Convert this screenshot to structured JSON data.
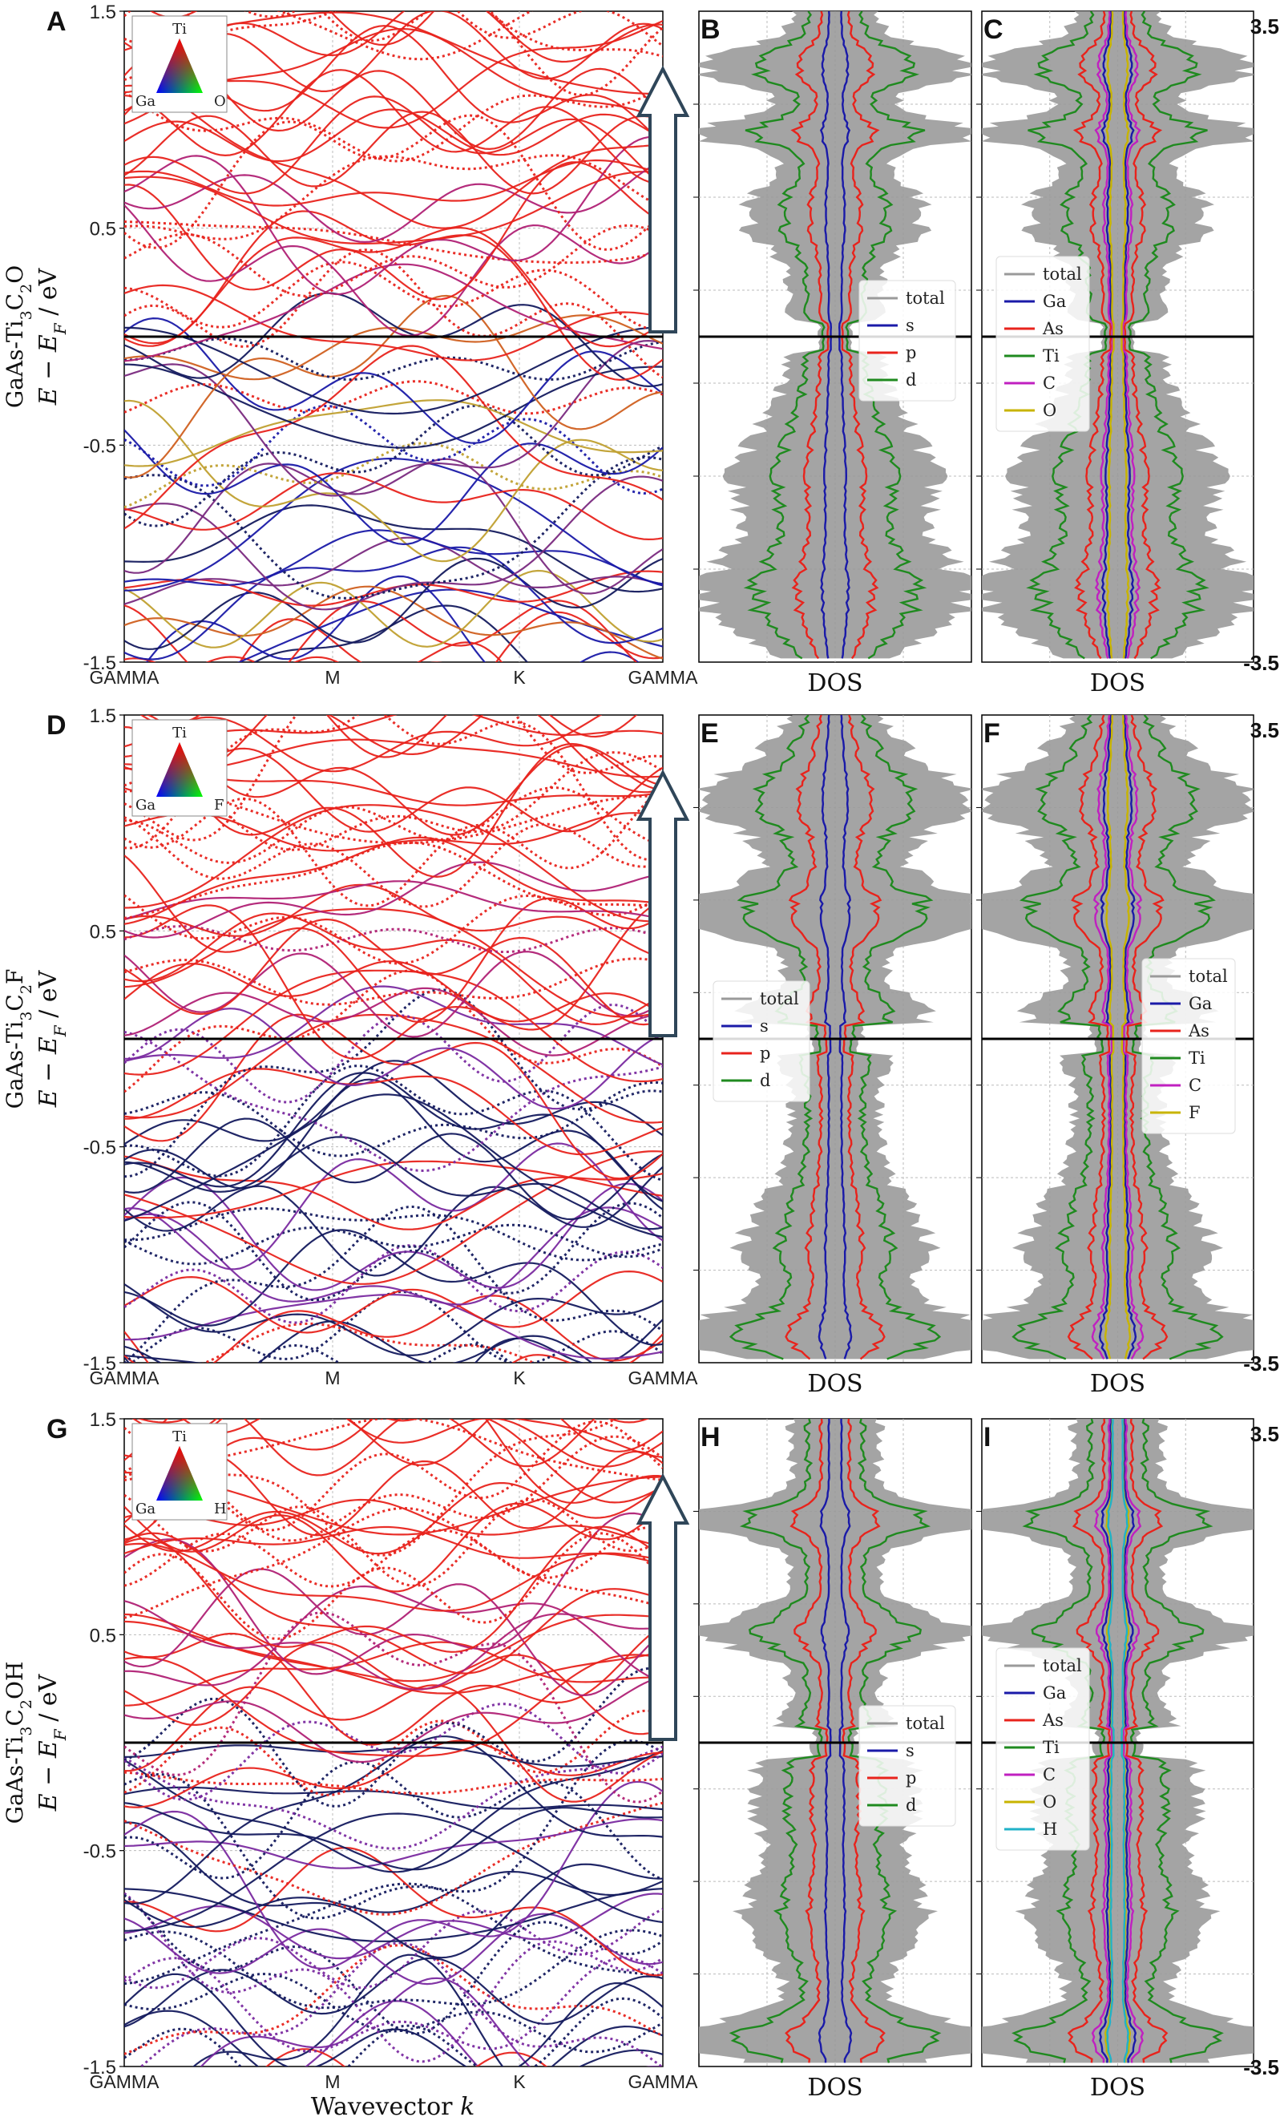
{
  "colors": {
    "red": "#e8231c",
    "blue": "#1a1aa8",
    "navy": "#141a5e",
    "green": "#1f8a1f",
    "magenta": "#c020c0",
    "yellow": "#c8b400",
    "cyan": "#20b2c8",
    "gray": "#9a9a9a",
    "arrow": "#2f4659"
  },
  "chart_data": [
    {
      "panel": "A",
      "type": "line",
      "ylabel_material": "GaAs-Ti3C2O",
      "ylabel": "E − E_F / eV",
      "ylim": [
        -1.5,
        1.5
      ],
      "yticks": [
        "1.5",
        "0.5",
        "-0.5",
        "-1.5"
      ],
      "xticks": [
        "GAMMA",
        "M",
        "K",
        "GAMMA"
      ],
      "xlabel": "",
      "legend_triangle": {
        "top": "Ti",
        "left": "Ga",
        "right": "O"
      }
    },
    {
      "panel": "B",
      "type": "area",
      "xlabel": "DOS",
      "ylim": [
        -3.5,
        3.5
      ],
      "legend": [
        "total",
        "s",
        "p",
        "d"
      ]
    },
    {
      "panel": "C",
      "type": "area",
      "xlabel": "DOS",
      "ylim": [
        -3.5,
        3.5
      ],
      "ytick_labels": {
        "top": "3.5",
        "bottom": "-3.5"
      },
      "legend": [
        "total",
        "Ga",
        "As",
        "Ti",
        "C",
        "O"
      ]
    },
    {
      "panel": "D",
      "type": "line",
      "ylabel_material": "GaAs-Ti3C2F",
      "ylabel": "E − E_F / eV",
      "ylim": [
        -1.5,
        1.5
      ],
      "yticks": [
        "1.5",
        "0.5",
        "-0.5",
        "-1.5"
      ],
      "xticks": [
        "GAMMA",
        "M",
        "K",
        "GAMMA"
      ],
      "xlabel": "",
      "legend_triangle": {
        "top": "Ti",
        "left": "Ga",
        "right": "F"
      }
    },
    {
      "panel": "E",
      "type": "area",
      "xlabel": "DOS",
      "ylim": [
        -3.5,
        3.5
      ],
      "legend": [
        "total",
        "s",
        "p",
        "d"
      ]
    },
    {
      "panel": "F",
      "type": "area",
      "xlabel": "DOS",
      "ylim": [
        -3.5,
        3.5
      ],
      "ytick_labels": {
        "top": "3.5",
        "bottom": "-3.5"
      },
      "legend": [
        "total",
        "Ga",
        "As",
        "Ti",
        "C",
        "F"
      ]
    },
    {
      "panel": "G",
      "type": "line",
      "ylabel_material": "GaAs-Ti3C2OH",
      "ylabel": "E − E_F / eV",
      "ylim": [
        -1.5,
        1.5
      ],
      "yticks": [
        "1.5",
        "0.5",
        "-0.5",
        "-1.5"
      ],
      "xticks": [
        "GAMMA",
        "M",
        "K",
        "GAMMA"
      ],
      "xlabel": "Wavevector k",
      "legend_triangle": {
        "top": "Ti",
        "left": "Ga",
        "right": "H"
      }
    },
    {
      "panel": "H",
      "type": "area",
      "xlabel": "DOS",
      "ylim": [
        -3.5,
        3.5
      ],
      "legend": [
        "total",
        "s",
        "p",
        "d"
      ]
    },
    {
      "panel": "I",
      "type": "area",
      "xlabel": "DOS",
      "ylim": [
        -3.5,
        3.5
      ],
      "ytick_labels": {
        "top": "3.5",
        "bottom": "-3.5"
      },
      "legend": [
        "total",
        "Ga",
        "As",
        "Ti",
        "C",
        "O",
        "H"
      ]
    }
  ]
}
